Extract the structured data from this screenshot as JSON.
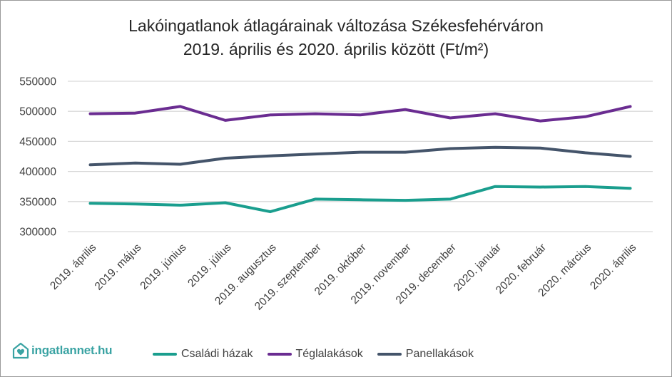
{
  "chart_data": {
    "type": "line",
    "title_line1": "Lakóingatlanok átlagárainak változása Székesfehérváron",
    "title_line2": "2019. április és 2020. április között (Ft/m²)",
    "categories": [
      "2019. április",
      "2019. május",
      "2019. június",
      "2019. július",
      "2019. augusztus",
      "2019. szeptember",
      "2019. október",
      "2019. november",
      "2019. december",
      "2020. január",
      "2020. február",
      "2020. március",
      "2020. április"
    ],
    "y_ticks": [
      "300000",
      "350000",
      "400000",
      "450000",
      "500000",
      "550000"
    ],
    "ylim": [
      300000,
      550000
    ],
    "grid": true,
    "legend_position": "bottom",
    "series": [
      {
        "name": "Családi házak",
        "color": "#1a9e8e",
        "values": [
          347000,
          346000,
          344000,
          348000,
          333000,
          354000,
          353000,
          352000,
          354000,
          375000,
          374000,
          375000,
          372000
        ]
      },
      {
        "name": "Téglalakások",
        "color": "#6a2c91",
        "values": [
          496000,
          497000,
          508000,
          485000,
          494000,
          496000,
          494000,
          503000,
          489000,
          496000,
          484000,
          491000,
          508000
        ]
      },
      {
        "name": "Panellakások",
        "color": "#44546a",
        "values": [
          411000,
          414000,
          412000,
          422000,
          426000,
          429000,
          432000,
          432000,
          438000,
          440000,
          439000,
          431000,
          425000
        ]
      }
    ]
  },
  "branding": {
    "logo_text": "ingatlannet.hu",
    "logo_icon": "house-heart-icon",
    "logo_color": "#3aa3a3"
  }
}
